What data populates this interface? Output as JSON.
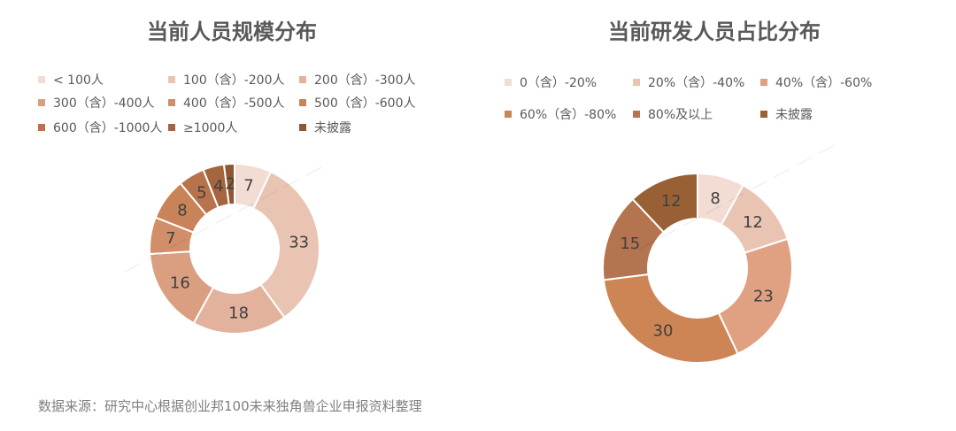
{
  "footer": {
    "source": "数据来源：研究中心根据创业邦100未来独角兽企业申报资料整理"
  },
  "chart_data": [
    {
      "type": "pie",
      "title": "当前人员规模分布",
      "legend_position": "top",
      "categories": [
        "< 100人",
        "100（含）-200人",
        "200（含）-300人",
        "300（含）-400人",
        "400（含）-500人",
        "500（含）-600人",
        "600（含）-1000人",
        "≥1000人",
        "未披露"
      ],
      "values": [
        7,
        33,
        18,
        16,
        7,
        8,
        5,
        4,
        2
      ],
      "colors": [
        "#F2DCD3",
        "#EAC4B3",
        "#E3B29D",
        "#DA9E81",
        "#D28E69",
        "#C98358",
        "#B8734C",
        "#A5653F",
        "#8E5632"
      ]
    },
    {
      "type": "pie",
      "title": "当前研发人员占比分布",
      "legend_position": "top",
      "categories": [
        "0（含）-20%",
        "20%（含）-40%",
        "40%（含）-60%",
        "60%（含）-80%",
        "80%及以上",
        "未披露"
      ],
      "values": [
        8,
        12,
        23,
        30,
        15,
        12
      ],
      "colors": [
        "#F2DCD3",
        "#EAC4B3",
        "#DFA182",
        "#CD8556",
        "#B3744F",
        "#9A6035"
      ]
    }
  ]
}
